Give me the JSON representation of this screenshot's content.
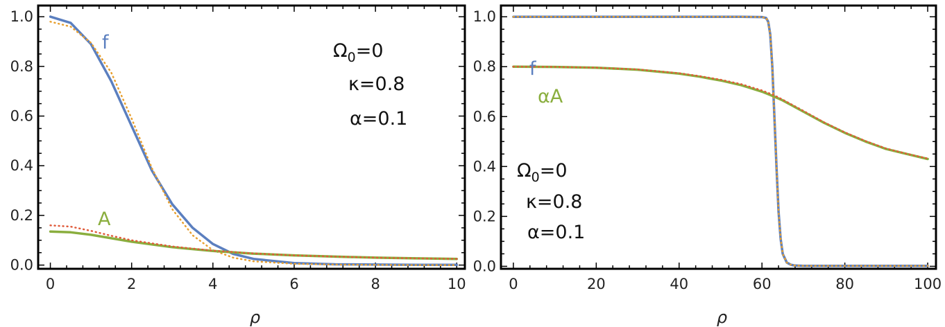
{
  "colors": {
    "f": "#5b7fbf",
    "A": "#8aae3e",
    "f_dotted": "#e8a030",
    "A_dotted": "#e05a3a",
    "frame": "#000000"
  },
  "chart_data": [
    {
      "type": "line",
      "xlabel": "ρ",
      "ylabel": "",
      "xlim": [
        -0.3,
        10.2
      ],
      "ylim": [
        -0.015,
        1.045
      ],
      "xticks": [
        0,
        2,
        4,
        6,
        8,
        10
      ],
      "yticks": [
        0.0,
        0.2,
        0.4,
        0.6,
        0.8,
        1.0
      ],
      "xtick_labels": [
        "0",
        "2",
        "4",
        "6",
        "8",
        "10"
      ],
      "ytick_labels": [
        "0.0",
        "0.2",
        "0.4",
        "0.6",
        "0.8",
        "1.0"
      ],
      "annotations": {
        "omega": "Ω",
        "omega_sub": "0",
        "omega_rest": "=0",
        "kappa": "κ=0.8",
        "alpha": "α=0.1"
      },
      "series": [
        {
          "name": "f",
          "color": "#5b7fbf",
          "style": "solid",
          "x": [
            0,
            0.5,
            1,
            1.5,
            2,
            2.5,
            3,
            3.5,
            4,
            4.5,
            5,
            6,
            7,
            8,
            9,
            10
          ],
          "y": [
            1.0,
            0.975,
            0.89,
            0.74,
            0.56,
            0.38,
            0.245,
            0.15,
            0.085,
            0.045,
            0.025,
            0.008,
            0.003,
            0.002,
            0.001,
            0.001
          ]
        },
        {
          "name": "",
          "color": "#e8a030",
          "style": "dotted",
          "x": [
            0,
            0.5,
            1,
            1.5,
            2,
            2.5,
            3,
            3.5,
            4,
            4.5,
            5,
            6,
            7,
            8,
            9,
            10
          ],
          "y": [
            0.98,
            0.96,
            0.895,
            0.775,
            0.59,
            0.39,
            0.225,
            0.12,
            0.06,
            0.03,
            0.015,
            0.005,
            0.002,
            0.001,
            0.0,
            0.0
          ]
        },
        {
          "name": "A",
          "color": "#8aae3e",
          "style": "solid",
          "x": [
            0,
            0.5,
            1,
            1.5,
            2,
            3,
            4,
            5,
            6,
            7,
            8,
            9,
            10
          ],
          "y": [
            0.135,
            0.132,
            0.122,
            0.108,
            0.094,
            0.072,
            0.057,
            0.046,
            0.039,
            0.034,
            0.03,
            0.027,
            0.025
          ]
        },
        {
          "name": "",
          "color": "#e05a3a",
          "style": "dotted",
          "x": [
            0,
            0.5,
            1,
            1.5,
            2,
            3,
            4,
            5,
            6,
            7,
            8,
            9,
            10
          ],
          "y": [
            0.16,
            0.155,
            0.138,
            0.118,
            0.1,
            0.075,
            0.058,
            0.047,
            0.039,
            0.034,
            0.03,
            0.027,
            0.025
          ]
        }
      ]
    },
    {
      "type": "line",
      "xlabel": "ρ",
      "ylabel": "",
      "xlim": [
        -3,
        102
      ],
      "ylim": [
        -0.01,
        1.045
      ],
      "xticks": [
        0,
        20,
        40,
        60,
        80,
        100
      ],
      "yticks": [
        0.0,
        0.2,
        0.4,
        0.6,
        0.8,
        1.0
      ],
      "xtick_labels": [
        "0",
        "20",
        "40",
        "60",
        "80",
        "100"
      ],
      "ytick_labels": [
        "0.0",
        "0.2",
        "0.4",
        "0.6",
        "0.8",
        "1.0"
      ],
      "annotations": {
        "omega": "Ω",
        "omega_sub": "0",
        "omega_rest": "=0",
        "kappa": "κ=0.8",
        "alpha": "α=0.1"
      },
      "series": [
        {
          "name": "f",
          "color": "#5b7fbf",
          "style": "solid",
          "x": [
            0,
            20,
            40,
            55,
            60,
            61,
            61.5,
            62,
            62.5,
            63,
            63.5,
            64,
            64.5,
            65,
            66,
            67,
            68,
            70,
            80,
            90,
            100
          ],
          "y": [
            1.0,
            1.0,
            1.0,
            1.0,
            0.999,
            0.995,
            0.98,
            0.93,
            0.8,
            0.6,
            0.4,
            0.22,
            0.11,
            0.05,
            0.015,
            0.006,
            0.003,
            0.002,
            0.002,
            0.002,
            0.002
          ]
        },
        {
          "name": "",
          "color": "#e8a030",
          "style": "dotted",
          "x": [
            0,
            20,
            40,
            55,
            60,
            61,
            61.5,
            62,
            62.5,
            63,
            63.5,
            64,
            64.5,
            65,
            66,
            67,
            68,
            70,
            80,
            90,
            100
          ],
          "y": [
            1.0,
            1.0,
            1.0,
            1.0,
            0.999,
            0.995,
            0.98,
            0.93,
            0.8,
            0.6,
            0.4,
            0.22,
            0.11,
            0.05,
            0.015,
            0.006,
            0.003,
            0.002,
            0.002,
            0.002,
            0.002
          ]
        },
        {
          "name": "αA",
          "color": "#8aae3e",
          "style": "solid",
          "x": [
            0,
            10,
            20,
            30,
            40,
            45,
            50,
            55,
            60,
            63,
            65,
            70,
            75,
            80,
            85,
            90,
            95,
            100
          ],
          "y": [
            0.8,
            0.799,
            0.796,
            0.788,
            0.772,
            0.76,
            0.745,
            0.726,
            0.7,
            0.68,
            0.665,
            0.62,
            0.575,
            0.535,
            0.5,
            0.47,
            0.45,
            0.43
          ]
        },
        {
          "name": "",
          "color": "#e05a3a",
          "style": "dotted",
          "x": [
            0,
            10,
            20,
            30,
            40,
            45,
            50,
            55,
            60,
            63,
            65,
            70,
            75,
            80,
            85,
            90,
            95,
            100
          ],
          "y": [
            0.8,
            0.799,
            0.796,
            0.789,
            0.774,
            0.762,
            0.748,
            0.73,
            0.705,
            0.685,
            0.668,
            0.623,
            0.577,
            0.537,
            0.502,
            0.472,
            0.451,
            0.432
          ]
        }
      ]
    }
  ]
}
